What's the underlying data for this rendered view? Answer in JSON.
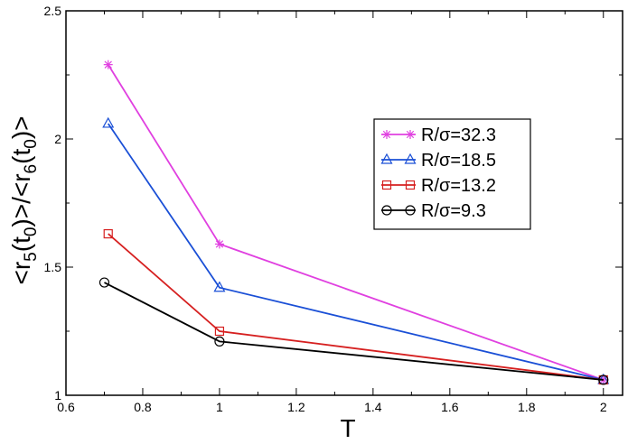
{
  "chart_data": {
    "type": "line",
    "xlabel": "T",
    "ylabel_parts": [
      "<r",
      "5",
      "(t",
      "0",
      ")>/<r",
      "6",
      "(t",
      "0",
      ")>"
    ],
    "xlim": [
      0.6,
      2.05
    ],
    "ylim": [
      1.0,
      2.5
    ],
    "x_ticks": [
      0.6,
      0.8,
      1.0,
      1.2,
      1.4,
      1.6,
      1.8,
      2.0
    ],
    "x_tick_labels": [
      "0.6",
      "0.8",
      "1",
      "1.2",
      "1.4",
      "1.6",
      "1.8",
      "2"
    ],
    "y_ticks": [
      1.0,
      1.5,
      2.0,
      2.5
    ],
    "y_tick_labels": [
      "1",
      "1.5",
      "2",
      "2.5"
    ],
    "grid": false,
    "legend_position": "upper-right",
    "series": [
      {
        "name": "R/σ=32.3",
        "color": "#e040e0",
        "marker": "star",
        "x": [
          0.71,
          1.0,
          2.0
        ],
        "y": [
          2.29,
          1.59,
          1.06
        ]
      },
      {
        "name": "R/σ=18.5",
        "color": "#1a4fd6",
        "marker": "triangle",
        "x": [
          0.71,
          1.0,
          2.0
        ],
        "y": [
          2.06,
          1.42,
          1.06
        ]
      },
      {
        "name": "R/σ=13.2",
        "color": "#d62020",
        "marker": "square",
        "x": [
          0.71,
          1.0,
          2.0
        ],
        "y": [
          1.63,
          1.25,
          1.06
        ]
      },
      {
        "name": "R/σ=9.3",
        "color": "#000000",
        "marker": "circle",
        "x": [
          0.7,
          1.0,
          2.0
        ],
        "y": [
          1.44,
          1.21,
          1.06
        ]
      }
    ]
  }
}
